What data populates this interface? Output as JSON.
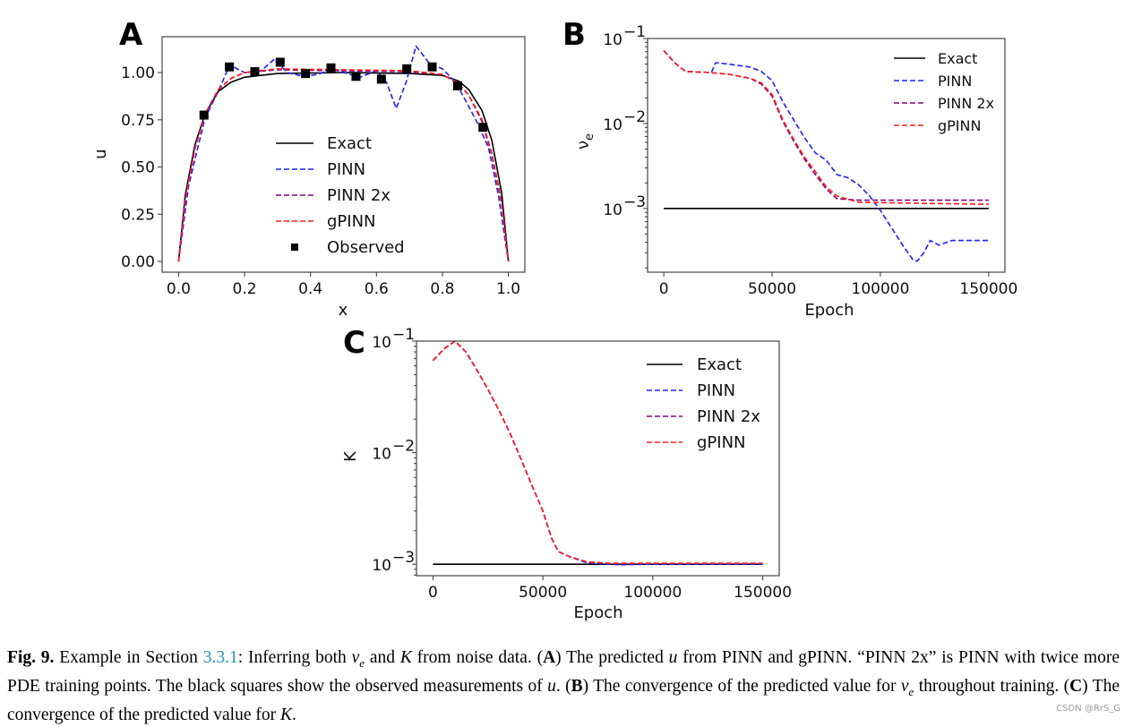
{
  "colors": {
    "Exact": "#000000",
    "PINN": "#1f1fff",
    "PINN 2x": "#800080",
    "gPINN": "#ff1a1a",
    "Observed": "#000000"
  },
  "chart_data": [
    {
      "panel": "A",
      "type": "line",
      "xlabel": "x",
      "ylabel": "u",
      "xlim": [
        -0.05,
        1.05
      ],
      "ylim": [
        -0.057,
        1.19
      ],
      "yscale": "linear",
      "xticks": [
        "0.0",
        "0.2",
        "0.4",
        "0.6",
        "0.8",
        "1.0"
      ],
      "yticks": [
        "0.00",
        "0.25",
        "0.50",
        "0.75",
        "1.00"
      ],
      "legend_placement": "center",
      "series": [
        {
          "name": "Exact",
          "style": "solid",
          "x": [
            0,
            0.02,
            0.05,
            0.08,
            0.12,
            0.16,
            0.2,
            0.3,
            0.5,
            0.7,
            0.8,
            0.85,
            0.88,
            0.92,
            0.95,
            0.98,
            1
          ],
          "y": [
            0,
            0.35,
            0.62,
            0.78,
            0.9,
            0.95,
            0.975,
            0.995,
            1.0,
            0.995,
            0.985,
            0.955,
            0.91,
            0.8,
            0.64,
            0.36,
            0
          ]
        },
        {
          "name": "PINN",
          "style": "dashed",
          "x": [
            0,
            0.03,
            0.08,
            0.12,
            0.155,
            0.2,
            0.25,
            0.29,
            0.33,
            0.38,
            0.42,
            0.47,
            0.52,
            0.55,
            0.6,
            0.63,
            0.66,
            0.69,
            0.72,
            0.76,
            0.8,
            0.84,
            0.88,
            0.91,
            0.94,
            0.97,
            1
          ],
          "y": [
            0,
            0.4,
            0.76,
            0.9,
            1.04,
            1.0,
            1.01,
            1.07,
            1.0,
            0.98,
            0.99,
            1.02,
            0.99,
            0.975,
            1.01,
            0.95,
            0.81,
            0.95,
            1.14,
            1.05,
            1.02,
            0.95,
            0.82,
            0.72,
            0.6,
            0.35,
            0
          ]
        },
        {
          "name": "PINN 2x",
          "style": "dashed",
          "x": [
            0,
            0.02,
            0.05,
            0.08,
            0.12,
            0.16,
            0.2,
            0.3,
            0.5,
            0.7,
            0.8,
            0.85,
            0.88,
            0.92,
            0.95,
            0.98,
            1
          ],
          "y": [
            0,
            0.33,
            0.6,
            0.78,
            0.91,
            0.97,
            1.0,
            1.015,
            1.01,
            1.005,
            0.99,
            0.94,
            0.88,
            0.75,
            0.57,
            0.31,
            0
          ]
        },
        {
          "name": "gPINN",
          "style": "dashed",
          "x": [
            0,
            0.02,
            0.05,
            0.08,
            0.12,
            0.16,
            0.2,
            0.3,
            0.5,
            0.7,
            0.8,
            0.85,
            0.88,
            0.92,
            0.95,
            0.98,
            1
          ],
          "y": [
            0,
            0.33,
            0.6,
            0.78,
            0.91,
            0.97,
            1.0,
            1.02,
            1.015,
            1.01,
            0.99,
            0.94,
            0.88,
            0.74,
            0.56,
            0.3,
            0
          ]
        },
        {
          "name": "Observed",
          "style": "marker-square",
          "x": [
            0.077,
            0.154,
            0.231,
            0.308,
            0.385,
            0.462,
            0.538,
            0.615,
            0.692,
            0.769,
            0.846,
            0.923
          ],
          "y": [
            0.775,
            1.03,
            1.005,
            1.055,
            0.995,
            1.025,
            0.98,
            0.965,
            1.02,
            1.03,
            0.93,
            0.71
          ]
        }
      ]
    },
    {
      "panel": "B",
      "type": "line",
      "xlabel": "Epoch",
      "ylabel": "ν",
      "ylabel_sub": "e",
      "xlim": [
        -7500,
        157500
      ],
      "ylim": [
        0.000178,
        0.1
      ],
      "yscale": "log",
      "xticks": [
        "0",
        "50000",
        "100000",
        "150000"
      ],
      "xtick_values": [
        0,
        50000,
        100000,
        150000
      ],
      "yticks": [
        {
          "base": "10",
          "exp": "−1",
          "value": 0.1
        },
        {
          "base": "10",
          "exp": "−2",
          "value": 0.01
        },
        {
          "base": "10",
          "exp": "−3",
          "value": 0.001
        }
      ],
      "legend_placement": "upper right",
      "series": [
        {
          "name": "Exact",
          "style": "solid",
          "x": [
            0,
            150000
          ],
          "y": [
            0.001,
            0.001
          ]
        },
        {
          "name": "PINN",
          "style": "dashed",
          "x": [
            0,
            5000,
            10000,
            20000,
            22000,
            24000,
            30000,
            40000,
            45000,
            50000,
            55000,
            60000,
            65000,
            70000,
            75000,
            80000,
            85000,
            90000,
            95000,
            100000,
            105000,
            110000,
            115000,
            117000,
            120000,
            123000,
            127000,
            133000,
            150000
          ],
          "y": [
            0.072,
            0.052,
            0.041,
            0.04,
            0.04,
            0.052,
            0.05,
            0.046,
            0.041,
            0.032,
            0.018,
            0.011,
            0.0068,
            0.0045,
            0.0037,
            0.0025,
            0.0023,
            0.0019,
            0.0014,
            0.00095,
            0.0006,
            0.00038,
            0.00025,
            0.00024,
            0.0003,
            0.00042,
            0.00037,
            0.00042,
            0.00042
          ]
        },
        {
          "name": "PINN 2x",
          "style": "dashed",
          "x": [
            0,
            5000,
            10000,
            20000,
            30000,
            40000,
            45000,
            50000,
            55000,
            60000,
            65000,
            70000,
            75000,
            80000,
            90000,
            150000
          ],
          "y": [
            0.072,
            0.052,
            0.041,
            0.04,
            0.038,
            0.034,
            0.029,
            0.021,
            0.0105,
            0.0062,
            0.0038,
            0.0025,
            0.0017,
            0.0013,
            0.00125,
            0.00125
          ]
        },
        {
          "name": "gPINN",
          "style": "dashed",
          "x": [
            0,
            5000,
            10000,
            20000,
            30000,
            40000,
            45000,
            50000,
            55000,
            60000,
            65000,
            70000,
            75000,
            80000,
            90000,
            150000
          ],
          "y": [
            0.072,
            0.052,
            0.041,
            0.04,
            0.038,
            0.034,
            0.03,
            0.022,
            0.011,
            0.0065,
            0.004,
            0.0027,
            0.0018,
            0.0014,
            0.00118,
            0.00112
          ]
        }
      ]
    },
    {
      "panel": "C",
      "type": "line",
      "xlabel": "Epoch",
      "ylabel": "K",
      "xlim": [
        -7500,
        157500
      ],
      "ylim": [
        0.00079,
        0.1
      ],
      "yscale": "log",
      "xticks": [
        "0",
        "50000",
        "100000",
        "150000"
      ],
      "xtick_values": [
        0,
        50000,
        100000,
        150000
      ],
      "yticks": [
        {
          "base": "10",
          "exp": "−1",
          "value": 0.1
        },
        {
          "base": "10",
          "exp": "−2",
          "value": 0.01
        },
        {
          "base": "10",
          "exp": "−3",
          "value": 0.001
        }
      ],
      "legend_placement": "upper right",
      "series": [
        {
          "name": "Exact",
          "style": "solid",
          "x": [
            0,
            150000
          ],
          "y": [
            0.001,
            0.001
          ]
        },
        {
          "name": "PINN",
          "style": "dashed",
          "x": [
            0,
            5000,
            10000,
            15000,
            20000,
            25000,
            30000,
            35000,
            40000,
            45000,
            50000,
            54000,
            57000,
            62000,
            70000,
            80000,
            85000,
            100000,
            150000
          ],
          "y": [
            0.067,
            0.085,
            0.1,
            0.08,
            0.055,
            0.037,
            0.024,
            0.015,
            0.0088,
            0.0051,
            0.003,
            0.0017,
            0.0013,
            0.00117,
            0.00103,
            0.001,
            0.00099,
            0.001,
            0.001
          ]
        },
        {
          "name": "PINN 2x",
          "style": "dashed",
          "x": [
            0,
            5000,
            10000,
            15000,
            20000,
            25000,
            30000,
            35000,
            40000,
            45000,
            50000,
            54000,
            57000,
            62000,
            70000,
            80000,
            150000
          ],
          "y": [
            0.067,
            0.085,
            0.1,
            0.08,
            0.055,
            0.037,
            0.024,
            0.015,
            0.0088,
            0.0051,
            0.003,
            0.0017,
            0.0013,
            0.00117,
            0.00105,
            0.00102,
            0.00102
          ]
        },
        {
          "name": "gPINN",
          "style": "dashed",
          "x": [
            0,
            5000,
            10000,
            15000,
            20000,
            25000,
            30000,
            35000,
            40000,
            45000,
            50000,
            54000,
            57000,
            62000,
            70000,
            80000,
            150000
          ],
          "y": [
            0.067,
            0.085,
            0.1,
            0.08,
            0.055,
            0.037,
            0.024,
            0.015,
            0.0088,
            0.0051,
            0.003,
            0.0017,
            0.0013,
            0.00117,
            0.00105,
            0.00102,
            0.00102
          ]
        }
      ]
    }
  ],
  "caption": [
    {
      "t": "Fig. 9.",
      "s": "b"
    },
    {
      "t": " Example in Section ",
      "s": ""
    },
    {
      "t": "3.3.1",
      "s": "link"
    },
    {
      "t": ": Inferring both ",
      "s": ""
    },
    {
      "t": "ν",
      "s": "i"
    },
    {
      "t": "e",
      "s": "i sub"
    },
    {
      "t": " and ",
      "s": ""
    },
    {
      "t": "K",
      "s": "i"
    },
    {
      "t": " from noise data. (",
      "s": ""
    },
    {
      "t": "A",
      "s": "b"
    },
    {
      "t": ") The predicted ",
      "s": ""
    },
    {
      "t": "u",
      "s": "i"
    },
    {
      "t": " from PINN and gPINN. “PINN 2x” is PINN with twice more PDE training points. The black squares show the observed measurements of ",
      "s": ""
    },
    {
      "t": "u",
      "s": "i"
    },
    {
      "t": ". (",
      "s": ""
    },
    {
      "t": "B",
      "s": "b"
    },
    {
      "t": ") The convergence of the predicted value for ",
      "s": ""
    },
    {
      "t": "ν",
      "s": "i"
    },
    {
      "t": "e",
      "s": "i sub"
    },
    {
      "t": " throughout training. (",
      "s": ""
    },
    {
      "t": "C",
      "s": "b"
    },
    {
      "t": ") The convergence of the predicted value for ",
      "s": ""
    },
    {
      "t": "K",
      "s": "i"
    },
    {
      "t": ".",
      "s": ""
    }
  ],
  "watermark": "CSDN @RrS_G"
}
